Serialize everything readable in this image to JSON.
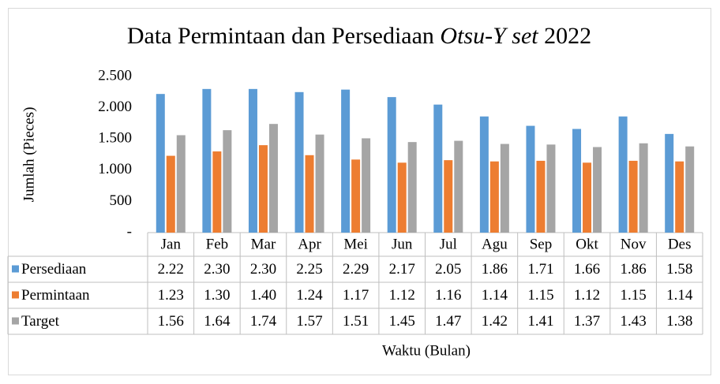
{
  "chart_data": {
    "type": "bar",
    "title": [
      "Data Permintaan dan Persediaan ",
      "Otsu-Y set",
      " 2022"
    ],
    "y_label": "Jumlah (Pieces)",
    "x_label": "Waktu (Bulan)",
    "categories": [
      "Jan",
      "Feb",
      "Mar",
      "Apr",
      "Mei",
      "Jun",
      "Jul",
      "Agu",
      "Sep",
      "Okt",
      "Nov",
      "Des"
    ],
    "series": [
      {
        "name": "Persediaan",
        "color": "#5b9bd5",
        "values": [
          2220,
          2300,
          2300,
          2250,
          2290,
          2170,
          2050,
          1860,
          1710,
          1660,
          1860,
          1580
        ],
        "value_labels": [
          "2.22",
          "2.30",
          "2.30",
          "2.25",
          "2.29",
          "2.17",
          "2.05",
          "1.86",
          "1.71",
          "1.66",
          "1.86",
          "1.58"
        ]
      },
      {
        "name": "Permintaan",
        "color": "#ed7d31",
        "values": [
          1230,
          1300,
          1400,
          1240,
          1170,
          1120,
          1160,
          1140,
          1150,
          1120,
          1150,
          1140
        ],
        "value_labels": [
          "1.23",
          "1.30",
          "1.40",
          "1.24",
          "1.17",
          "1.12",
          "1.16",
          "1.14",
          "1.15",
          "1.12",
          "1.15",
          "1.14"
        ]
      },
      {
        "name": "Target",
        "color": "#a5a5a5",
        "values": [
          1560,
          1640,
          1740,
          1570,
          1510,
          1450,
          1470,
          1420,
          1410,
          1370,
          1430,
          1380
        ],
        "value_labels": [
          "1.56",
          "1.64",
          "1.74",
          "1.57",
          "1.51",
          "1.45",
          "1.47",
          "1.42",
          "1.41",
          "1.37",
          "1.43",
          "1.38"
        ]
      }
    ],
    "ylim": [
      0,
      2500
    ],
    "yticks": [
      {
        "value": 0,
        "label": "-"
      },
      500,
      {
        "value": 1000,
        "label": "1.000"
      },
      {
        "value": 1500,
        "label": "1.500"
      },
      {
        "value": 2000,
        "label": "2.000"
      },
      {
        "value": 2500,
        "label": "2.500"
      }
    ],
    "grid": false
  }
}
